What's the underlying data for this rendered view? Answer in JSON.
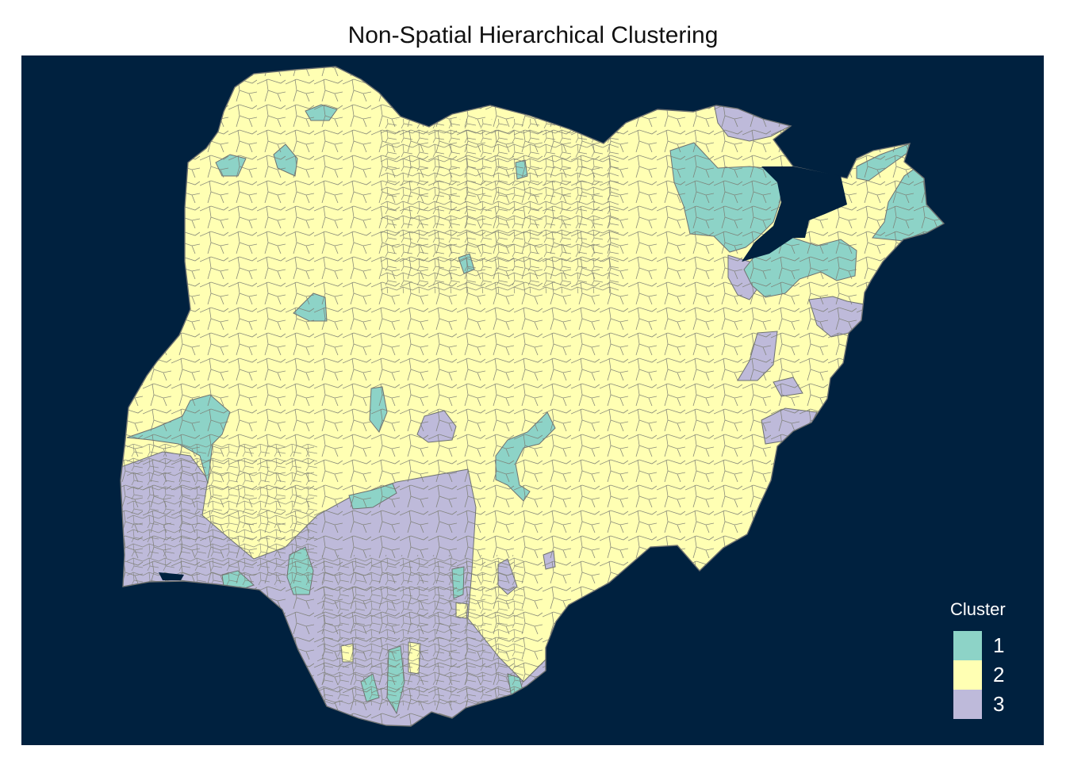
{
  "title": "Non-Spatial Hierarchical Clustering",
  "colors": {
    "background": "#00213F",
    "border": "#6E7170"
  },
  "legend": {
    "title": "Cluster",
    "items": [
      {
        "label": "1",
        "color": "#8DD3C7"
      },
      {
        "label": "2",
        "color": "#FFFFB3"
      },
      {
        "label": "3",
        "color": "#BEBADA"
      }
    ]
  }
}
